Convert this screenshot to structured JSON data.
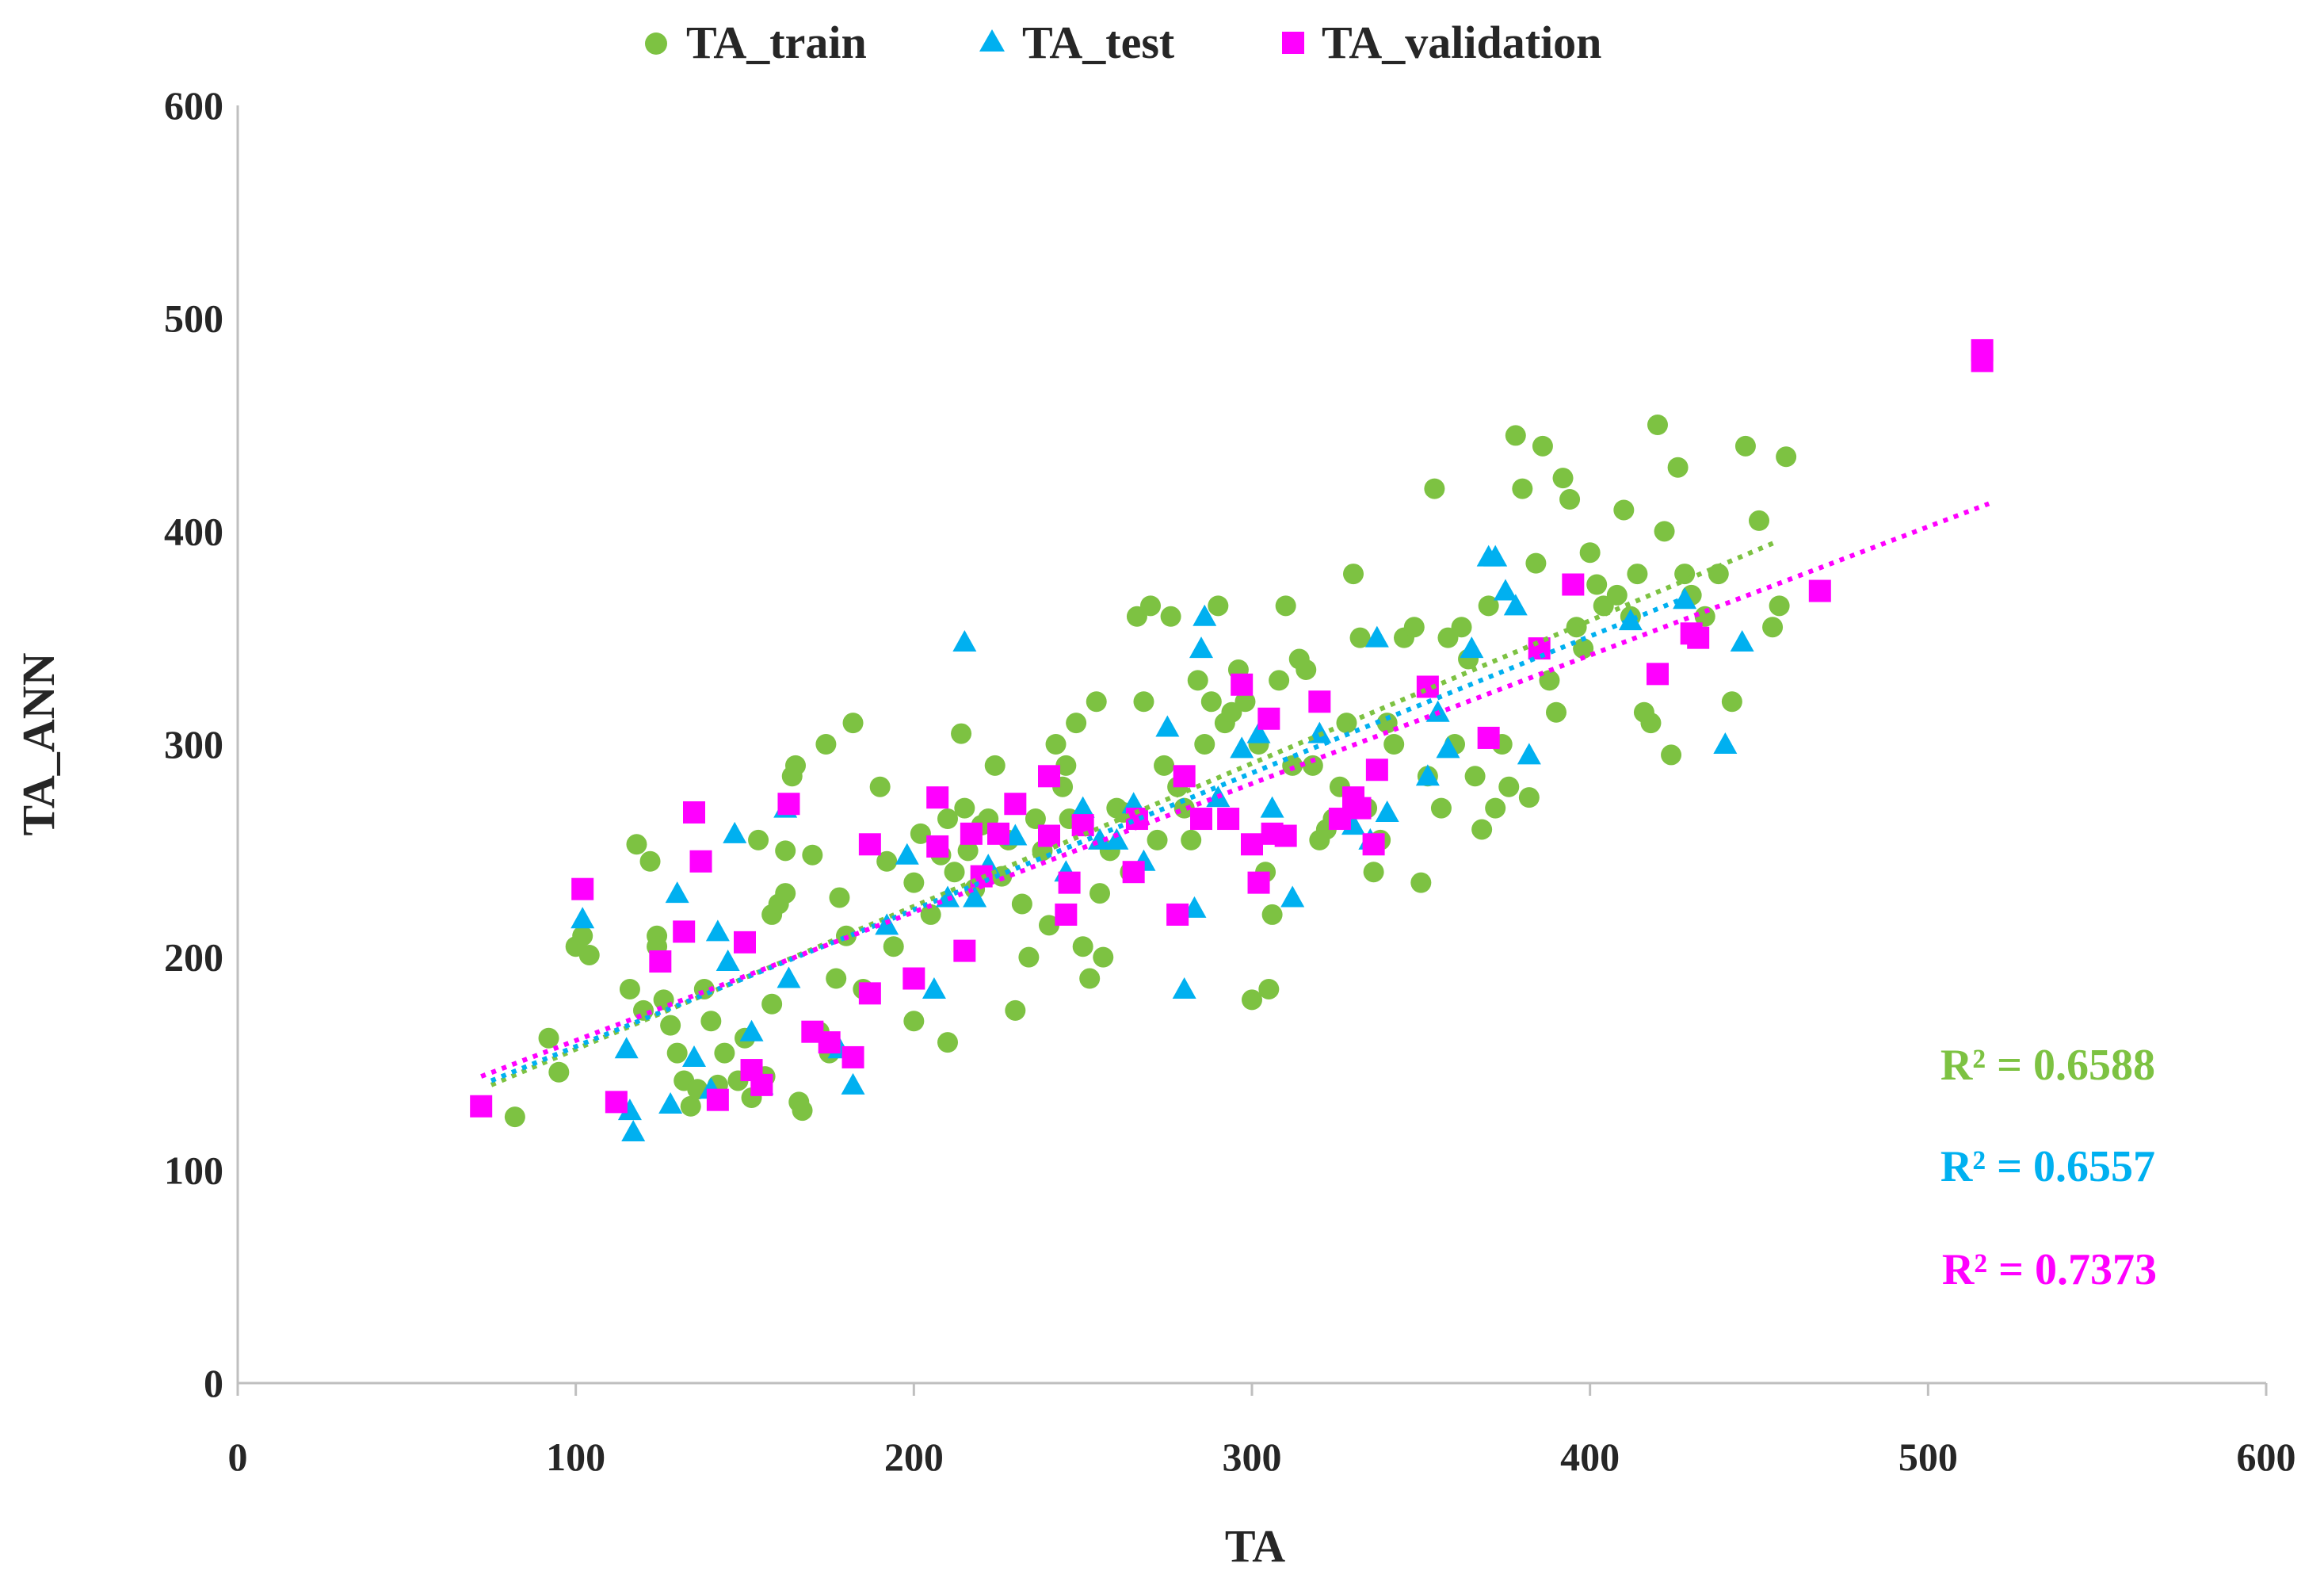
{
  "chart_data": {
    "type": "scatter",
    "title": "",
    "xlabel": "TA",
    "ylabel": "TA_ANN",
    "xlim": [
      0,
      600
    ],
    "ylim": [
      0,
      600
    ],
    "x_ticks": [
      0,
      100,
      200,
      300,
      400,
      500,
      600
    ],
    "y_ticks": [
      0,
      100,
      200,
      300,
      400,
      500,
      600
    ],
    "legend_position": "top-center",
    "series": [
      {
        "name": "TA_train",
        "color": "#7dc242",
        "marker": "circle",
        "r2_label": "R² = 0.6588",
        "trendline": {
          "x": [
            75,
            455
          ],
          "y": [
            140,
            395
          ]
        },
        "points": [
          [
            82,
            125
          ],
          [
            92,
            162
          ],
          [
            95,
            146
          ],
          [
            100,
            205
          ],
          [
            102,
            210
          ],
          [
            104,
            201
          ],
          [
            116,
            185
          ],
          [
            118,
            253
          ],
          [
            120,
            175
          ],
          [
            122,
            245
          ],
          [
            124,
            210
          ],
          [
            124,
            205
          ],
          [
            126,
            180
          ],
          [
            128,
            168
          ],
          [
            130,
            155
          ],
          [
            132,
            142
          ],
          [
            134,
            130
          ],
          [
            136,
            138
          ],
          [
            138,
            185
          ],
          [
            140,
            170
          ],
          [
            142,
            140
          ],
          [
            144,
            155
          ],
          [
            148,
            142
          ],
          [
            150,
            162
          ],
          [
            152,
            134
          ],
          [
            154,
            255
          ],
          [
            156,
            144
          ],
          [
            158,
            178
          ],
          [
            158,
            220
          ],
          [
            160,
            225
          ],
          [
            162,
            230
          ],
          [
            162,
            250
          ],
          [
            164,
            285
          ],
          [
            165,
            290
          ],
          [
            166,
            132
          ],
          [
            167,
            128
          ],
          [
            170,
            248
          ],
          [
            172,
            165
          ],
          [
            174,
            300
          ],
          [
            175,
            155
          ],
          [
            177,
            190
          ],
          [
            178,
            228
          ],
          [
            180,
            210
          ],
          [
            182,
            310
          ],
          [
            185,
            185
          ],
          [
            190,
            280
          ],
          [
            192,
            245
          ],
          [
            194,
            205
          ],
          [
            200,
            235
          ],
          [
            200,
            170
          ],
          [
            202,
            258
          ],
          [
            205,
            220
          ],
          [
            208,
            248
          ],
          [
            210,
            265
          ],
          [
            210,
            160
          ],
          [
            212,
            240
          ],
          [
            214,
            305
          ],
          [
            215,
            270
          ],
          [
            216,
            250
          ],
          [
            218,
            232
          ],
          [
            220,
            262
          ],
          [
            222,
            265
          ],
          [
            224,
            290
          ],
          [
            226,
            238
          ],
          [
            228,
            255
          ],
          [
            230,
            175
          ],
          [
            232,
            225
          ],
          [
            234,
            200
          ],
          [
            236,
            265
          ],
          [
            238,
            250
          ],
          [
            240,
            215
          ],
          [
            242,
            300
          ],
          [
            244,
            280
          ],
          [
            245,
            290
          ],
          [
            246,
            265
          ],
          [
            248,
            310
          ],
          [
            250,
            205
          ],
          [
            252,
            190
          ],
          [
            254,
            320
          ],
          [
            255,
            230
          ],
          [
            256,
            200
          ],
          [
            258,
            250
          ],
          [
            260,
            270
          ],
          [
            262,
            268
          ],
          [
            264,
            240
          ],
          [
            266,
            360
          ],
          [
            268,
            320
          ],
          [
            270,
            365
          ],
          [
            272,
            255
          ],
          [
            274,
            290
          ],
          [
            276,
            360
          ],
          [
            278,
            280
          ],
          [
            280,
            270
          ],
          [
            282,
            255
          ],
          [
            284,
            330
          ],
          [
            286,
            300
          ],
          [
            288,
            320
          ],
          [
            290,
            365
          ],
          [
            292,
            310
          ],
          [
            294,
            315
          ],
          [
            296,
            335
          ],
          [
            298,
            320
          ],
          [
            300,
            180
          ],
          [
            302,
            300
          ],
          [
            304,
            240
          ],
          [
            305,
            185
          ],
          [
            306,
            220
          ],
          [
            308,
            330
          ],
          [
            310,
            365
          ],
          [
            312,
            290
          ],
          [
            314,
            340
          ],
          [
            316,
            335
          ],
          [
            318,
            290
          ],
          [
            320,
            255
          ],
          [
            322,
            260
          ],
          [
            324,
            265
          ],
          [
            326,
            280
          ],
          [
            328,
            310
          ],
          [
            330,
            380
          ],
          [
            332,
            350
          ],
          [
            334,
            270
          ],
          [
            336,
            240
          ],
          [
            338,
            255
          ],
          [
            340,
            310
          ],
          [
            342,
            300
          ],
          [
            345,
            350
          ],
          [
            348,
            355
          ],
          [
            350,
            235
          ],
          [
            352,
            285
          ],
          [
            354,
            420
          ],
          [
            356,
            270
          ],
          [
            358,
            350
          ],
          [
            360,
            300
          ],
          [
            362,
            355
          ],
          [
            364,
            340
          ],
          [
            366,
            285
          ],
          [
            368,
            260
          ],
          [
            370,
            365
          ],
          [
            372,
            270
          ],
          [
            374,
            300
          ],
          [
            376,
            280
          ],
          [
            378,
            445
          ],
          [
            380,
            420
          ],
          [
            382,
            275
          ],
          [
            384,
            385
          ],
          [
            386,
            440
          ],
          [
            388,
            330
          ],
          [
            390,
            315
          ],
          [
            392,
            425
          ],
          [
            394,
            415
          ],
          [
            396,
            355
          ],
          [
            398,
            345
          ],
          [
            400,
            390
          ],
          [
            402,
            375
          ],
          [
            404,
            365
          ],
          [
            408,
            370
          ],
          [
            410,
            410
          ],
          [
            412,
            360
          ],
          [
            414,
            380
          ],
          [
            416,
            315
          ],
          [
            418,
            310
          ],
          [
            420,
            450
          ],
          [
            422,
            400
          ],
          [
            424,
            295
          ],
          [
            426,
            430
          ],
          [
            428,
            380
          ],
          [
            430,
            370
          ],
          [
            434,
            360
          ],
          [
            438,
            380
          ],
          [
            442,
            320
          ],
          [
            446,
            440
          ],
          [
            450,
            405
          ],
          [
            454,
            355
          ],
          [
            456,
            365
          ],
          [
            458,
            435
          ]
        ]
      },
      {
        "name": "TA_test",
        "color": "#00b0f0",
        "marker": "triangle",
        "r2_label": "R² = 0.6557",
        "trendline": {
          "x": [
            75,
            430
          ],
          "y": [
            142,
            370
          ]
        },
        "points": [
          [
            102,
            218
          ],
          [
            115,
            157
          ],
          [
            116,
            128
          ],
          [
            117,
            118
          ],
          [
            128,
            131
          ],
          [
            130,
            230
          ],
          [
            135,
            153
          ],
          [
            140,
            138
          ],
          [
            142,
            212
          ],
          [
            145,
            198
          ],
          [
            147,
            258
          ],
          [
            152,
            165
          ],
          [
            155,
            140
          ],
          [
            162,
            270
          ],
          [
            163,
            190
          ],
          [
            178,
            157
          ],
          [
            182,
            140
          ],
          [
            192,
            215
          ],
          [
            198,
            248
          ],
          [
            206,
            185
          ],
          [
            210,
            228
          ],
          [
            215,
            348
          ],
          [
            218,
            228
          ],
          [
            222,
            243
          ],
          [
            230,
            257
          ],
          [
            245,
            240
          ],
          [
            250,
            270
          ],
          [
            255,
            255
          ],
          [
            260,
            255
          ],
          [
            265,
            272
          ],
          [
            268,
            245
          ],
          [
            275,
            308
          ],
          [
            280,
            185
          ],
          [
            283,
            223
          ],
          [
            285,
            345
          ],
          [
            286,
            360
          ],
          [
            290,
            275
          ],
          [
            297,
            298
          ],
          [
            302,
            305
          ],
          [
            306,
            270
          ],
          [
            312,
            228
          ],
          [
            320,
            305
          ],
          [
            330,
            262
          ],
          [
            335,
            255
          ],
          [
            337,
            350
          ],
          [
            340,
            268
          ],
          [
            352,
            285
          ],
          [
            355,
            315
          ],
          [
            358,
            298
          ],
          [
            365,
            345
          ],
          [
            370,
            388
          ],
          [
            372,
            388
          ],
          [
            375,
            372
          ],
          [
            378,
            365
          ],
          [
            382,
            295
          ],
          [
            412,
            358
          ],
          [
            428,
            368
          ],
          [
            440,
            300
          ],
          [
            445,
            348
          ]
        ]
      },
      {
        "name": "TA_validation",
        "color": "#ff00ff",
        "marker": "square",
        "r2_label": "R² = 0.7373",
        "trendline": {
          "x": [
            72,
            518
          ],
          "y": [
            144,
            413
          ]
        },
        "points": [
          [
            72,
            130
          ],
          [
            102,
            232
          ],
          [
            112,
            132
          ],
          [
            125,
            198
          ],
          [
            132,
            212
          ],
          [
            135,
            268
          ],
          [
            137,
            245
          ],
          [
            142,
            133
          ],
          [
            150,
            207
          ],
          [
            152,
            147
          ],
          [
            155,
            140
          ],
          [
            163,
            272
          ],
          [
            170,
            165
          ],
          [
            175,
            160
          ],
          [
            182,
            153
          ],
          [
            187,
            183
          ],
          [
            187,
            253
          ],
          [
            200,
            190
          ],
          [
            207,
            275
          ],
          [
            207,
            252
          ],
          [
            215,
            203
          ],
          [
            217,
            258
          ],
          [
            220,
            238
          ],
          [
            225,
            258
          ],
          [
            230,
            272
          ],
          [
            240,
            257
          ],
          [
            240,
            285
          ],
          [
            245,
            220
          ],
          [
            246,
            235
          ],
          [
            250,
            262
          ],
          [
            265,
            240
          ],
          [
            266,
            265
          ],
          [
            278,
            220
          ],
          [
            280,
            285
          ],
          [
            285,
            265
          ],
          [
            293,
            265
          ],
          [
            297,
            328
          ],
          [
            300,
            253
          ],
          [
            302,
            235
          ],
          [
            305,
            312
          ],
          [
            306,
            258
          ],
          [
            310,
            257
          ],
          [
            320,
            320
          ],
          [
            326,
            265
          ],
          [
            330,
            275
          ],
          [
            332,
            270
          ],
          [
            336,
            253
          ],
          [
            337,
            288
          ],
          [
            352,
            327
          ],
          [
            370,
            303
          ],
          [
            385,
            345
          ],
          [
            395,
            375
          ],
          [
            420,
            333
          ],
          [
            430,
            352
          ],
          [
            432,
            350
          ],
          [
            468,
            372
          ],
          [
            516,
            485
          ],
          [
            516,
            480
          ]
        ]
      }
    ]
  }
}
